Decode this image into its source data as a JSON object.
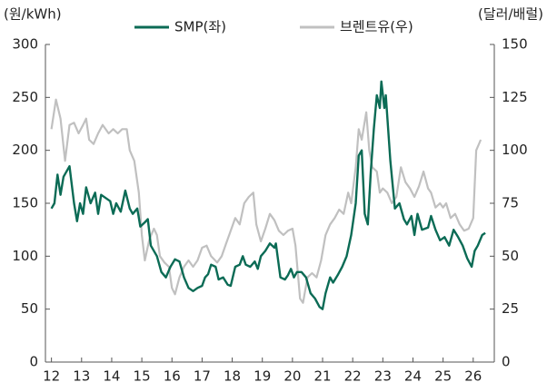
{
  "chart_data": {
    "type": "line",
    "ylabel": "(원/kWh)",
    "y2label": "(달러/배럴)",
    "xlim": [
      11.8,
      26.7
    ],
    "xticks": [
      12,
      13,
      14,
      15,
      16,
      17,
      18,
      19,
      20,
      21,
      22,
      23,
      24,
      25,
      26
    ],
    "ylim": [
      0,
      300
    ],
    "yticks": [
      0,
      50,
      100,
      150,
      200,
      250,
      300
    ],
    "y2lim": [
      0,
      150
    ],
    "y2ticks": [
      0,
      25,
      50,
      75,
      100,
      125,
      150
    ],
    "grid": false,
    "legend": "top",
    "series": [
      {
        "name": "SMP(좌)",
        "color": "#0b6b55",
        "axis": "y",
        "x": [
          12.0,
          12.1,
          12.2,
          12.3,
          12.4,
          12.6,
          12.75,
          12.85,
          12.95,
          13.05,
          13.15,
          13.3,
          13.45,
          13.55,
          13.65,
          13.8,
          13.95,
          14.05,
          14.15,
          14.3,
          14.45,
          14.6,
          14.7,
          14.85,
          14.95,
          15.1,
          15.2,
          15.3,
          15.5,
          15.65,
          15.8,
          15.95,
          16.1,
          16.25,
          16.4,
          16.55,
          16.7,
          16.85,
          17.0,
          17.1,
          17.2,
          17.3,
          17.45,
          17.55,
          17.7,
          17.85,
          17.95,
          18.1,
          18.25,
          18.35,
          18.45,
          18.6,
          18.75,
          18.85,
          18.95,
          19.1,
          19.25,
          19.4,
          19.45,
          19.6,
          19.75,
          19.85,
          19.95,
          20.05,
          20.15,
          20.3,
          20.45,
          20.6,
          20.75,
          20.9,
          21.0,
          21.1,
          21.25,
          21.35,
          21.5,
          21.65,
          21.8,
          21.95,
          22.1,
          22.2,
          22.3,
          22.4,
          22.5,
          22.6,
          22.7,
          22.8,
          22.9,
          22.95,
          23.05,
          23.1,
          23.25,
          23.4,
          23.55,
          23.7,
          23.8,
          23.95,
          24.05,
          24.15,
          24.3,
          24.5,
          24.6,
          24.75,
          24.9,
          25.05,
          25.2,
          25.35,
          25.5,
          25.65,
          25.8,
          25.95,
          26.05,
          26.15,
          26.3,
          26.4
        ],
        "values": [
          145,
          150,
          177,
          158,
          175,
          185,
          150,
          133,
          150,
          140,
          165,
          150,
          160,
          140,
          158,
          155,
          152,
          140,
          150,
          142,
          162,
          145,
          140,
          145,
          128,
          132,
          135,
          110,
          100,
          85,
          80,
          90,
          97,
          95,
          80,
          70,
          67,
          70,
          72,
          80,
          83,
          92,
          90,
          78,
          80,
          73,
          72,
          90,
          92,
          100,
          92,
          90,
          95,
          88,
          100,
          105,
          112,
          108,
          112,
          80,
          78,
          82,
          88,
          80,
          85,
          85,
          80,
          65,
          60,
          52,
          50,
          65,
          80,
          75,
          82,
          90,
          100,
          120,
          150,
          195,
          200,
          140,
          130,
          180,
          220,
          252,
          240,
          265,
          240,
          252,
          190,
          145,
          150,
          135,
          130,
          138,
          120,
          140,
          125,
          127,
          138,
          125,
          115,
          118,
          110,
          125,
          118,
          110,
          98,
          90,
          105,
          110,
          120,
          122
        ]
      },
      {
        "name": "브렌트유(우)",
        "color": "#c0c0c0",
        "axis": "y2",
        "x": [
          12.0,
          12.15,
          12.3,
          12.45,
          12.6,
          12.75,
          12.9,
          13.05,
          13.15,
          13.25,
          13.4,
          13.55,
          13.7,
          13.9,
          14.05,
          14.2,
          14.35,
          14.5,
          14.6,
          14.75,
          14.9,
          15.0,
          15.1,
          15.25,
          15.4,
          15.5,
          15.6,
          15.75,
          15.9,
          16.0,
          16.1,
          16.25,
          16.4,
          16.55,
          16.7,
          16.85,
          17.0,
          17.15,
          17.3,
          17.5,
          17.65,
          17.8,
          17.95,
          18.1,
          18.25,
          18.4,
          18.55,
          18.7,
          18.8,
          18.95,
          19.1,
          19.25,
          19.4,
          19.55,
          19.7,
          19.85,
          20.0,
          20.1,
          20.25,
          20.35,
          20.5,
          20.65,
          20.8,
          20.95,
          21.1,
          21.25,
          21.4,
          21.55,
          21.7,
          21.85,
          21.95,
          22.1,
          22.2,
          22.3,
          22.45,
          22.55,
          22.65,
          22.8,
          22.9,
          23.0,
          23.15,
          23.3,
          23.45,
          23.6,
          23.75,
          23.9,
          24.05,
          24.2,
          24.35,
          24.5,
          24.6,
          24.75,
          24.9,
          25.0,
          25.1,
          25.25,
          25.4,
          25.55,
          25.7,
          25.85,
          26.0,
          26.1,
          26.25
        ],
        "values": [
          110,
          124,
          115,
          95,
          112,
          113,
          108,
          112,
          115,
          105,
          103,
          108,
          112,
          108,
          110,
          108,
          110,
          110,
          100,
          95,
          80,
          60,
          48,
          58,
          63,
          60,
          50,
          47,
          45,
          35,
          32,
          40,
          45,
          48,
          45,
          48,
          54,
          55,
          50,
          47,
          50,
          56,
          62,
          68,
          65,
          75,
          78,
          80,
          65,
          57,
          63,
          70,
          67,
          62,
          60,
          62,
          63,
          55,
          30,
          28,
          40,
          42,
          40,
          48,
          60,
          65,
          68,
          72,
          70,
          80,
          75,
          92,
          110,
          105,
          118,
          100,
          92,
          90,
          80,
          82,
          80,
          75,
          78,
          92,
          85,
          82,
          78,
          83,
          90,
          82,
          80,
          73,
          75,
          73,
          75,
          68,
          70,
          65,
          62,
          63,
          68,
          100,
          105
        ]
      }
    ]
  }
}
